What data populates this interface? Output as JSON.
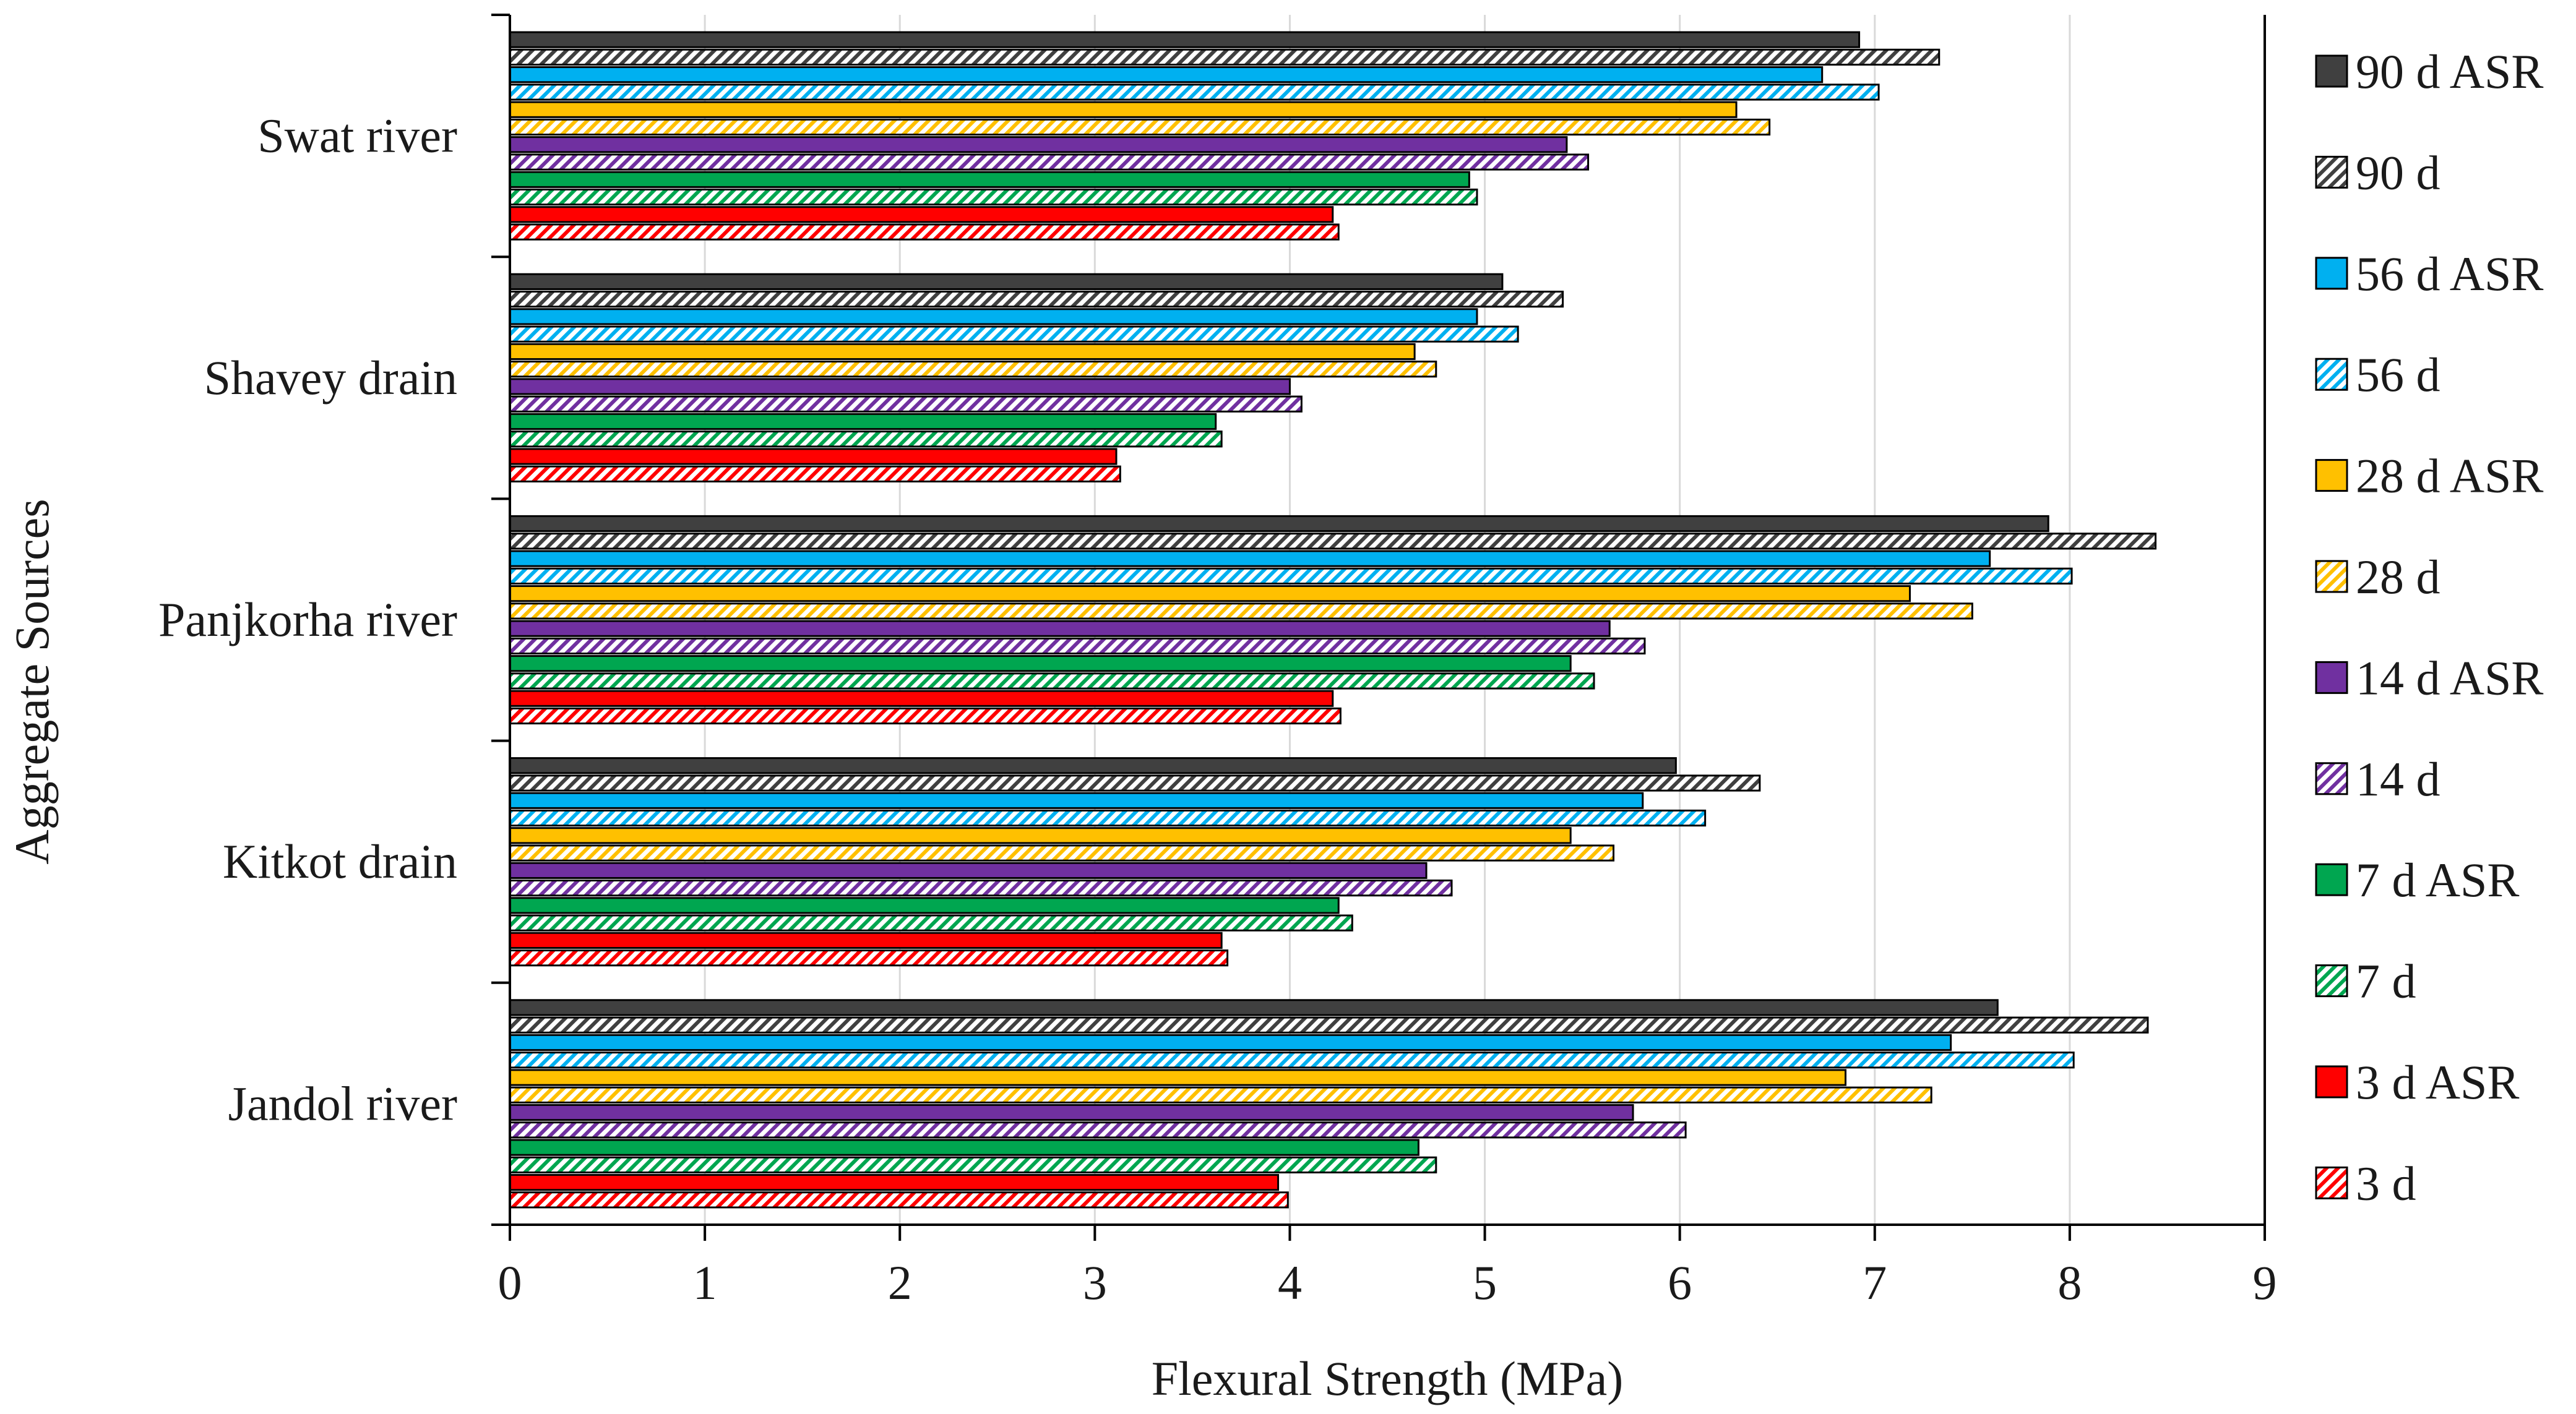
{
  "chart_data": {
    "type": "bar",
    "orientation": "horizontal",
    "title": "",
    "xlabel": "Flexural Strength (MPa)",
    "ylabel": "Aggregate Sources",
    "xlim": [
      0,
      9
    ],
    "xticks": [
      "0",
      "1",
      "2",
      "3",
      "4",
      "5",
      "6",
      "7",
      "8",
      "9"
    ],
    "grid": "vertical",
    "legend_position": "right",
    "categories": [
      "Swat river",
      "Shavey drain",
      "Panjkorha river",
      "Kitkot drain",
      "Jandol river"
    ],
    "series": [
      {
        "name": "90 d ASR",
        "color": "#404040",
        "hatched": false,
        "values": [
          6.92,
          5.09,
          7.89,
          5.98,
          7.63
        ]
      },
      {
        "name": "90 d",
        "color": "#404040",
        "hatched": true,
        "values": [
          7.33,
          5.4,
          8.44,
          6.41,
          8.4
        ]
      },
      {
        "name": "56 d ASR",
        "color": "#00b0f0",
        "hatched": false,
        "values": [
          6.73,
          4.96,
          7.59,
          5.81,
          7.39
        ]
      },
      {
        "name": "56 d",
        "color": "#00b0f0",
        "hatched": true,
        "values": [
          7.02,
          5.17,
          8.01,
          6.13,
          8.02
        ]
      },
      {
        "name": "28 d ASR",
        "color": "#ffc000",
        "hatched": false,
        "values": [
          6.29,
          4.64,
          7.18,
          5.44,
          6.85
        ]
      },
      {
        "name": "28 d",
        "color": "#ffc000",
        "hatched": true,
        "values": [
          6.46,
          4.75,
          7.5,
          5.66,
          7.29
        ]
      },
      {
        "name": "14 d ASR",
        "color": "#7030a0",
        "hatched": false,
        "values": [
          5.42,
          4.0,
          5.64,
          4.7,
          5.76
        ]
      },
      {
        "name": "14 d",
        "color": "#7030a0",
        "hatched": true,
        "values": [
          5.53,
          4.06,
          5.82,
          4.83,
          6.03
        ]
      },
      {
        "name": "7 d ASR",
        "color": "#00a650",
        "hatched": false,
        "values": [
          4.92,
          3.62,
          5.44,
          4.25,
          4.66
        ]
      },
      {
        "name": "7 d",
        "color": "#00a650",
        "hatched": true,
        "values": [
          4.96,
          3.65,
          5.56,
          4.32,
          4.75
        ]
      },
      {
        "name": "3 d ASR",
        "color": "#ff0000",
        "hatched": false,
        "values": [
          4.22,
          3.11,
          4.22,
          3.65,
          3.94
        ]
      },
      {
        "name": "3 d",
        "color": "#ff0000",
        "hatched": true,
        "values": [
          4.25,
          3.13,
          4.26,
          3.68,
          3.99
        ]
      }
    ]
  }
}
